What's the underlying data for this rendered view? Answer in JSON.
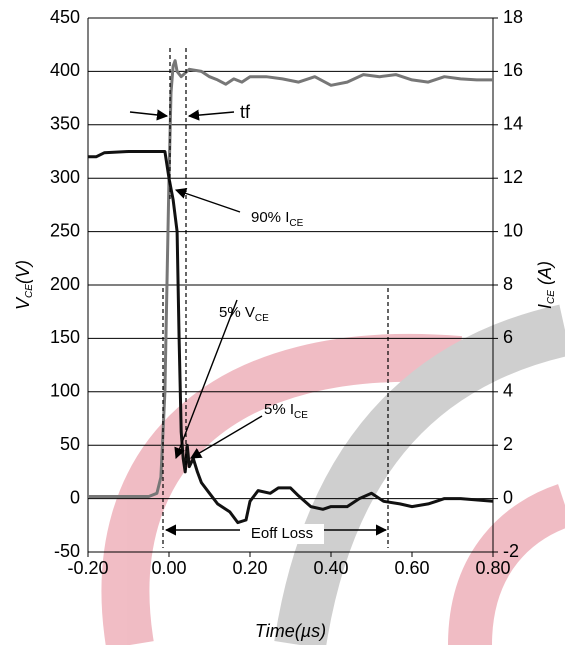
{
  "chart_data": {
    "type": "line",
    "xlabel": "Time(µs)",
    "ylabel": {
      "main": "V",
      "sub": "CE",
      "rest": "(V)"
    },
    "y2label": {
      "main": "I",
      "sub": "CE",
      "rest": " (A)"
    },
    "xlim": [
      -0.2,
      0.8
    ],
    "xticks": [
      {
        "value": -0.2,
        "label": "-0.20"
      },
      {
        "value": 0,
        "label": "0.00"
      },
      {
        "value": 0.2,
        "label": "0.20"
      },
      {
        "value": 0.4,
        "label": "0.40"
      },
      {
        "value": 0.6,
        "label": "0.60"
      },
      {
        "value": 0.8,
        "label": "0.80"
      }
    ],
    "ylim": [
      -50,
      450
    ],
    "yticks": [
      -50,
      0,
      50,
      100,
      150,
      200,
      250,
      300,
      350,
      400,
      450
    ],
    "y2lim": [
      -2,
      18
    ],
    "y2ticks": [
      -2,
      0,
      2,
      4,
      6,
      8,
      10,
      12,
      14,
      16,
      18
    ],
    "grid": true,
    "series": [
      {
        "color": "#777777",
        "axis": "y",
        "x": [
          -0.2,
          -0.05,
          -0.03,
          -0.02,
          -0.01,
          0,
          0.005,
          0.01,
          0.015,
          0.02,
          0.03,
          0.05,
          0.08,
          0.1,
          0.12,
          0.14,
          0.16,
          0.18,
          0.2,
          0.24,
          0.28,
          0.32,
          0.36,
          0.4,
          0.44,
          0.48,
          0.52,
          0.56,
          0.6,
          0.64,
          0.68,
          0.72,
          0.76,
          0.8
        ],
        "values": [
          2,
          2,
          5,
          20,
          100,
          300,
          380,
          405,
          410,
          400,
          395,
          402,
          400,
          395,
          392,
          388,
          393,
          390,
          395,
          395,
          393,
          390,
          395,
          387,
          390,
          397,
          395,
          397,
          392,
          390,
          395,
          393,
          392,
          392
        ]
      },
      {
        "color": "#111111",
        "axis": "y2",
        "x": [
          -0.2,
          -0.18,
          -0.16,
          -0.1,
          -0.01,
          0,
          0.01,
          0.02,
          0.025,
          0.03,
          0.035,
          0.04,
          0.045,
          0.05,
          0.06,
          0.07,
          0.08,
          0.1,
          0.12,
          0.15,
          0.17,
          0.19,
          0.2,
          0.22,
          0.25,
          0.27,
          0.3,
          0.32,
          0.35,
          0.38,
          0.4,
          0.44,
          0.47,
          0.5,
          0.53,
          0.57,
          0.6,
          0.64,
          0.66,
          0.68,
          0.72,
          0.8
        ],
        "values": [
          12.8,
          12.8,
          12.95,
          13,
          13,
          12,
          11.2,
          10,
          6,
          2.5,
          1.5,
          1,
          2,
          1.2,
          1.5,
          1,
          0.6,
          0.2,
          -0.2,
          -0.5,
          -0.9,
          -0.8,
          -0.1,
          0.3,
          0.2,
          0.4,
          0.4,
          0.1,
          -0.3,
          -0.4,
          -0.3,
          -0.3,
          0,
          0.2,
          -0.1,
          -0.2,
          -0.3,
          -0.2,
          -0.1,
          0,
          0,
          -0.1
        ]
      }
    ],
    "annotations": [
      {
        "main": "tf"
      },
      {
        "main": "90% I",
        "sub": "CE"
      },
      {
        "main": "5% V",
        "sub": "CE"
      },
      {
        "main": "5% I",
        "sub": "CE"
      },
      {
        "main": "Eoff Loss"
      }
    ]
  }
}
